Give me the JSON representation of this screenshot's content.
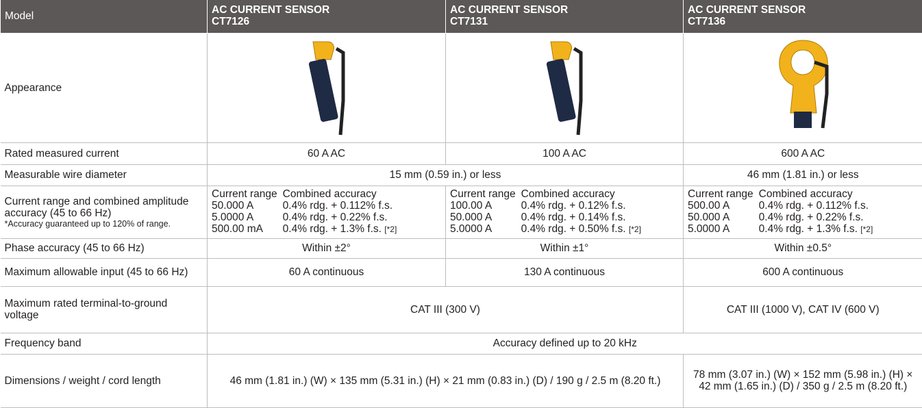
{
  "table": {
    "header": {
      "label": "Model",
      "models": [
        [
          "AC CURRENT SENSOR",
          "CT7126"
        ],
        [
          "AC CURRENT SENSOR",
          "CT7131"
        ],
        [
          "AC CURRENT SENSOR",
          "CT7136"
        ]
      ]
    },
    "rows": [
      {
        "label": "Appearance"
      },
      {
        "label": "Rated measured current",
        "cells": [
          "60 A AC",
          "100 A AC",
          "600 A AC"
        ]
      },
      {
        "label": "Measurable wire diameter",
        "cells": [
          "15 mm (0.59 in.) or less",
          "46 mm (1.81 in.) or less"
        ]
      },
      {
        "label": "Current range and combined amplitude accuracy (45 to 66 Hz)",
        "note": "*Accuracy guaranteed up to 120% of range.",
        "cells": [
          {
            "head": [
              "Current range",
              "Combined accuracy"
            ],
            "ranges": [
              [
                "50.000 A",
                "0.4% rdg. + 0.112% f.s."
              ],
              [
                "5.0000 A",
                "0.4% rdg. + 0.22% f.s."
              ],
              [
                "500.00 mA",
                "0.4% rdg. + 1.3% f.s."
              ]
            ],
            "footnote": "[*2]"
          },
          {
            "head": [
              "Current range",
              "Combined accuracy"
            ],
            "ranges": [
              [
                "100.00 A",
                "0.4% rdg. + 0.12% f.s."
              ],
              [
                "50.000 A",
                "0.4% rdg. + 0.14% f.s."
              ],
              [
                "5.0000 A",
                "0.4% rdg. + 0.50% f.s."
              ]
            ],
            "footnote": "[*2]"
          },
          {
            "head": [
              "Current range",
              "Combined accuracy"
            ],
            "ranges": [
              [
                "500.00 A",
                "0.4% rdg. + 0.112% f.s."
              ],
              [
                "50.000 A",
                "0.4% rdg. + 0.22% f.s."
              ],
              [
                "5.0000 A",
                "0.4% rdg. + 1.3% f.s."
              ]
            ],
            "footnote": "[*2]"
          }
        ]
      },
      {
        "label": "Phase accuracy (45 to 66 Hz)",
        "cells": [
          "Within ±2°",
          "Within ±1°",
          "Within ±0.5°"
        ]
      },
      {
        "label": "Maximum allowable input (45 to 66 Hz)",
        "cells": [
          "60 A continuous",
          "130 A continuous",
          "600 A continuous"
        ]
      },
      {
        "label": "Maximum rated terminal-to-ground voltage",
        "cells": [
          "CAT III (300 V)",
          "CAT III (1000 V), CAT IV (600 V)"
        ]
      },
      {
        "label": "Frequency band",
        "cells": [
          "Accuracy defined up to 20 kHz"
        ]
      },
      {
        "label": "Dimensions / weight / cord length",
        "cells": [
          "46 mm (1.81 in.) (W) × 135 mm (5.31 in.) (H) × 21 mm (0.83 in.) (D) / 190 g / 2.5 m (8.20 ft.)",
          "78 mm (3.07 in.) (W) × 152 mm (5.98 in.) (H) × 42 mm (1.65 in.) (D) / 350 g / 2.5 m (8.20 ft.)"
        ]
      }
    ]
  }
}
